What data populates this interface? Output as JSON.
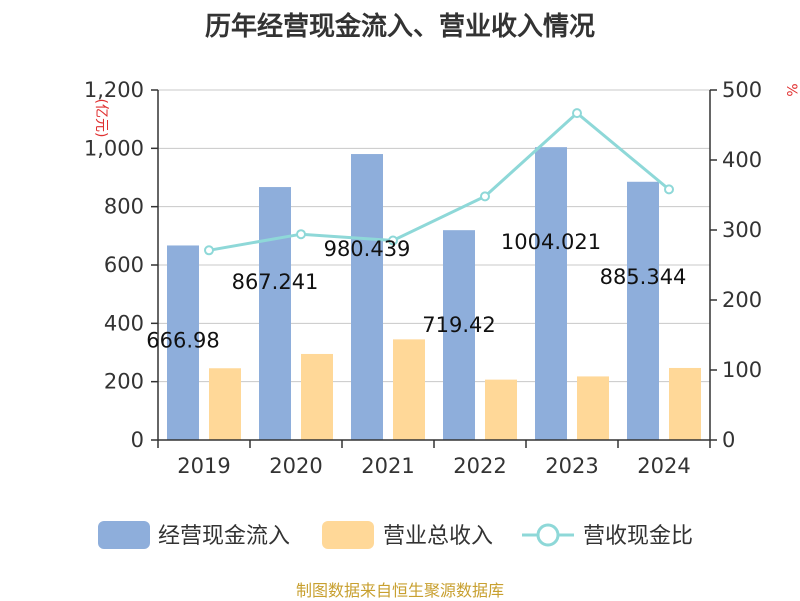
{
  "chart_data": {
    "type": "bar",
    "title": "历年经营现金流入、营业收入情况",
    "categories": [
      "2019",
      "2020",
      "2021",
      "2022",
      "2023",
      "2024"
    ],
    "series": [
      {
        "name": "经营现金流入",
        "kind": "bar",
        "axis": "left",
        "color": "#8eaedb",
        "values": [
          666.98,
          867.241,
          980.439,
          719.42,
          1004.021,
          885.344
        ],
        "labels": [
          "666.98",
          "867.241",
          "980.439",
          "719.42",
          "1004.021",
          "885.344"
        ]
      },
      {
        "name": "营业总收入",
        "kind": "bar",
        "axis": "left",
        "color": "#ffd898",
        "values": [
          246,
          295,
          345,
          207,
          218,
          247
        ]
      },
      {
        "name": "营收现金比",
        "kind": "line",
        "axis": "right",
        "color": "#8ed8d8",
        "values": [
          271,
          294,
          285,
          348,
          467,
          358
        ]
      }
    ],
    "y_left": {
      "unit": "(亿元)",
      "min": 0,
      "max": 1200,
      "ticks": [
        0,
        200,
        400,
        600,
        800,
        1000,
        1200
      ],
      "tick_labels": [
        "0",
        "200",
        "400",
        "600",
        "800",
        "1,000",
        "1,200"
      ]
    },
    "y_right": {
      "unit": "%",
      "min": 0,
      "max": 500,
      "ticks": [
        0,
        100,
        200,
        300,
        400,
        500
      ],
      "tick_labels": [
        "0",
        "100",
        "200",
        "300",
        "400",
        "500"
      ]
    },
    "grid": true,
    "legend_position": "bottom"
  },
  "source_note": "制图数据来自恒生聚源数据库"
}
